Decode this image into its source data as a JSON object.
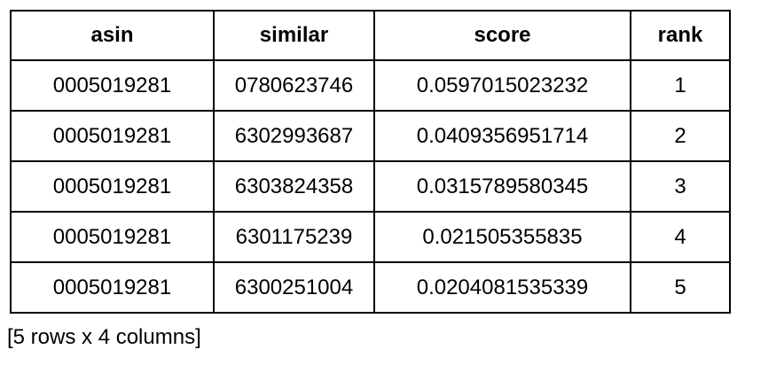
{
  "table": {
    "columns": [
      "asin",
      "similar",
      "score",
      "rank"
    ],
    "rows": [
      [
        "0005019281",
        "0780623746",
        "0.0597015023232",
        "1"
      ],
      [
        "0005019281",
        "6302993687",
        "0.0409356951714",
        "2"
      ],
      [
        "0005019281",
        "6303824358",
        "0.0315789580345",
        "3"
      ],
      [
        "0005019281",
        "6301175239",
        "0.021505355835",
        "4"
      ],
      [
        "0005019281",
        "6300251004",
        "0.0204081535339",
        "5"
      ]
    ]
  },
  "summary": "[5 rows x 4 columns]"
}
